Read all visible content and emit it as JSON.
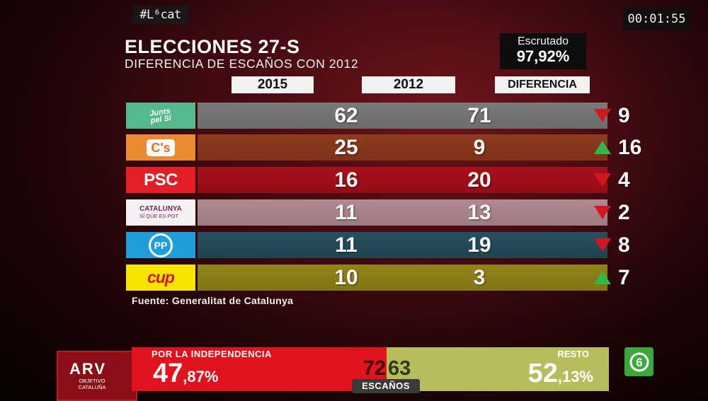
{
  "hashtag": "#L⁶cat",
  "timer": "00:01:55",
  "title": "ELECCIONES 27-S",
  "subtitle": "DIFERENCIA DE ESCAÑOS CON 2012",
  "scrutiny": {
    "label": "Escrutado",
    "value": "97,92%"
  },
  "columns": {
    "c2015": "2015",
    "c2012": "2012",
    "diff": "DIFERENCIA"
  },
  "rows": [
    {
      "party_logo": "Junts pel Sí",
      "v2015": "62",
      "v2012": "71",
      "direction": "down",
      "diff": "9",
      "color": "#55b98e"
    },
    {
      "party_logo": "C's",
      "v2015": "25",
      "v2012": "9",
      "direction": "up",
      "diff": "16",
      "color": "#ec8a32"
    },
    {
      "party_logo": "PSC",
      "v2015": "16",
      "v2012": "20",
      "direction": "down",
      "diff": "4",
      "color": "#e31e24"
    },
    {
      "party_logo": "CATALUNYA SÍ QUE ES POT",
      "v2015": "11",
      "v2012": "13",
      "direction": "down",
      "diff": "2",
      "color": "#f4f1f3"
    },
    {
      "party_logo": "PP",
      "v2015": "11",
      "v2012": "19",
      "direction": "down",
      "diff": "8",
      "color": "#1e9edb"
    },
    {
      "party_logo": "cup",
      "v2015": "10",
      "v2012": "3",
      "direction": "up",
      "diff": "7",
      "color": "#f4e400"
    }
  ],
  "logos": {
    "jxs_line1": "Junts",
    "jxs_line2": "pel Sí",
    "cs": "C's",
    "psc": "PSC",
    "catsi_line1": "CATALUNYA",
    "catsi_line2": "SÍ QUE ES POT",
    "pp": "PP",
    "cup": "cup"
  },
  "source": "Fuente: Generalitat de Catalunya",
  "ticker": {
    "arv_main": "ARV",
    "arv_sub": "OBJETIVO CATALUÑA",
    "indep_label": "POR LA INDEPENDENCIA",
    "indep_pct_int": "47",
    "indep_pct_dec": ",87%",
    "indep_seats": "72",
    "rest_label": "RESTO",
    "rest_pct_int": "52",
    "rest_pct_dec": ",13%",
    "rest_seats": "63",
    "seats_label": "ESCAÑOS",
    "channel_logo": "6"
  },
  "colors": {
    "up": "#2fb94a",
    "down": "#d4161f",
    "independence": "#e0121b",
    "rest": "#b7bd5d"
  }
}
